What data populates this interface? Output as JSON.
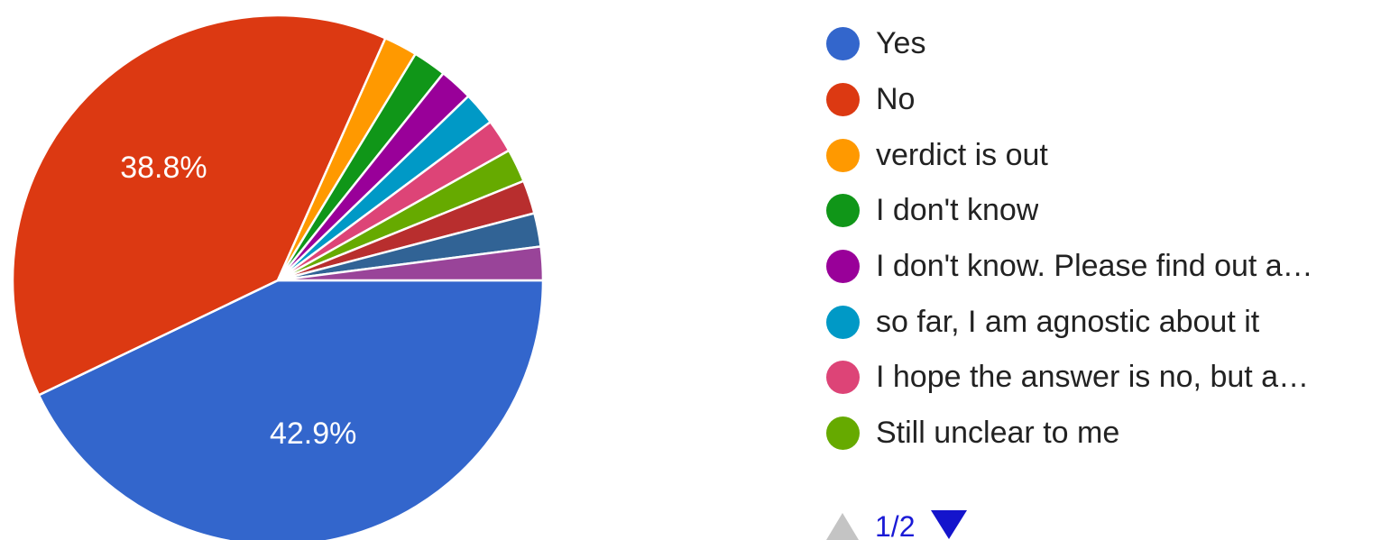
{
  "chart_data": {
    "type": "pie",
    "slices": [
      {
        "label": "Yes",
        "value": 42.9,
        "color": "#3366cc",
        "display": "42.9%"
      },
      {
        "label": "No",
        "value": 38.8,
        "color": "#dc3912",
        "display": "38.8%"
      },
      {
        "label": "verdict is out",
        "value": 2.04,
        "color": "#ff9900",
        "display": ""
      },
      {
        "label": "I don't know",
        "value": 2.04,
        "color": "#109618",
        "display": ""
      },
      {
        "label": "I don't know. Please find out a…",
        "value": 2.04,
        "color": "#990099",
        "display": ""
      },
      {
        "label": "so far, I am agnostic about it",
        "value": 2.04,
        "color": "#0099c6",
        "display": ""
      },
      {
        "label": "I hope the answer is no, but a…",
        "value": 2.04,
        "color": "#dd4477",
        "display": ""
      },
      {
        "label": "Still unclear to me",
        "value": 2.04,
        "color": "#66aa00",
        "display": ""
      },
      {
        "label": "",
        "value": 2.04,
        "color": "#b82e2e",
        "display": ""
      },
      {
        "label": "",
        "value": 2.04,
        "color": "#316395",
        "display": ""
      },
      {
        "label": "",
        "value": 2.04,
        "color": "#994499",
        "display": ""
      }
    ],
    "legend_position": "right",
    "legend_page": "1/2"
  },
  "legend": {
    "items": [
      {
        "label": "Yes",
        "color": "#3366cc"
      },
      {
        "label": "No",
        "color": "#dc3912"
      },
      {
        "label": "verdict is out",
        "color": "#ff9900"
      },
      {
        "label": "I don't know",
        "color": "#109618"
      },
      {
        "label": "I don't know. Please find out a…",
        "color": "#990099"
      },
      {
        "label": "so far, I am agnostic about it",
        "color": "#0099c6"
      },
      {
        "label": "I hope the answer is no, but a…",
        "color": "#dd4477"
      },
      {
        "label": "Still unclear to me",
        "color": "#66aa00"
      }
    ],
    "pager": {
      "text": "1/2",
      "prev_icon": "triangle-up-icon",
      "next_icon": "triangle-down-icon",
      "prev_color": "#c4c4c4",
      "next_color": "#1414cc"
    }
  }
}
